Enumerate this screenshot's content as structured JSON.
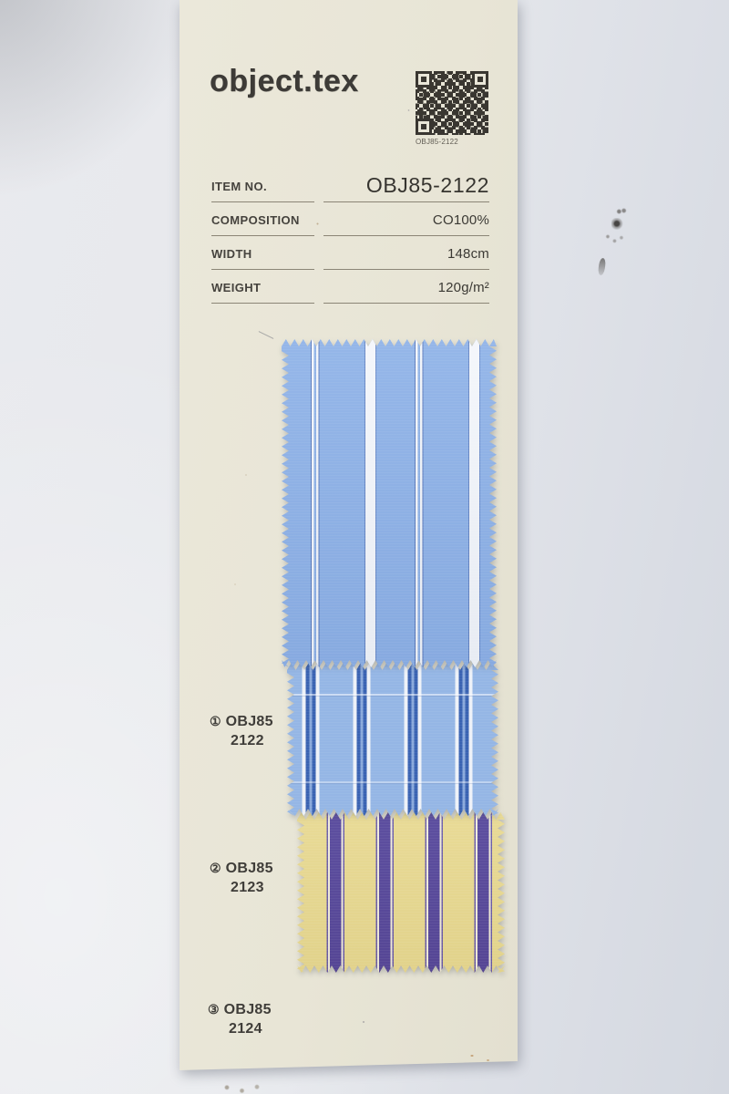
{
  "brand": {
    "logo": "object.tex"
  },
  "qr": {
    "caption": "OBJ85-2122"
  },
  "specs": {
    "rows": [
      {
        "label": "ITEM NO.",
        "value": "OBJ85-2122"
      },
      {
        "label": "COMPOSITION",
        "value": "CO100%"
      },
      {
        "label": "WIDTH",
        "value": "148cm"
      },
      {
        "label": "WEIGHT",
        "value": "120g/m²"
      }
    ]
  },
  "swatches": [
    {
      "marker": "①",
      "series": "OBJ85",
      "number": "2122",
      "base_color": "#8db1e7",
      "stripe_color": "#f3f6fb",
      "accent_color": "#4664aa"
    },
    {
      "marker": "②",
      "series": "OBJ85",
      "number": "2123",
      "base_color": "#95b6e5",
      "stripe_color": "#3a63b2",
      "accent_color": "#edf1f8"
    },
    {
      "marker": "③",
      "series": "OBJ85",
      "number": "2124",
      "base_color": "#e7d890",
      "stripe_color": "#53449a",
      "accent_color": "#f1ecda"
    }
  ],
  "colors": {
    "card_paper": "#e8e5d6",
    "backdrop": "#dfe2e8",
    "ink_text": "#3d3b37",
    "table_rule": "#8b8576"
  }
}
